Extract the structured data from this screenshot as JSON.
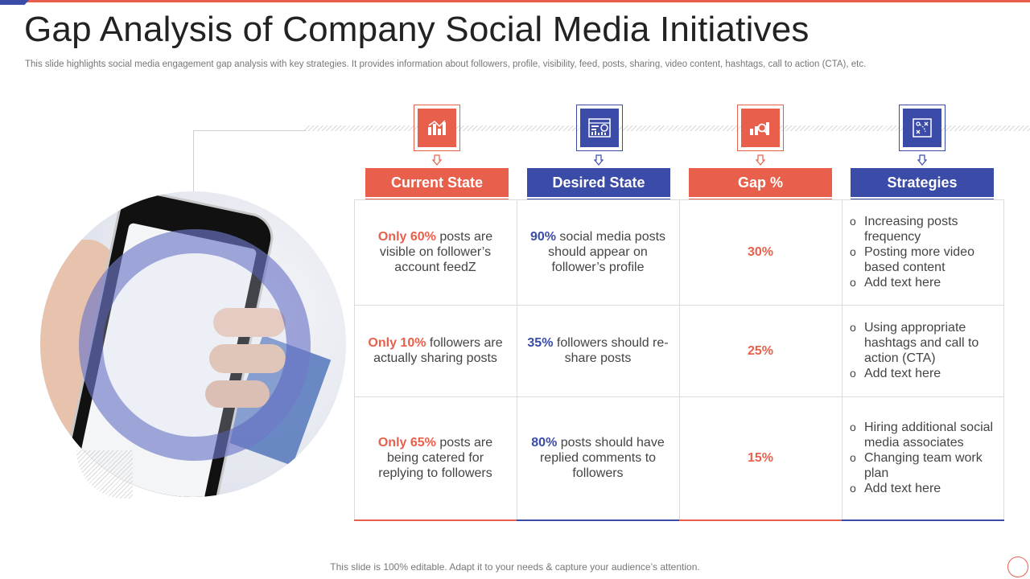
{
  "slide": {
    "title": "Gap Analysis of Company Social Media Initiatives",
    "subtitle": "This slide highlights social media engagement gap analysis with key strategies. It provides information about followers, profile, visibility, feed, posts, sharing, video content, hashtags, call to action (CTA),  etc.",
    "footer": "This slide is 100% editable. Adapt it to your needs & capture your audience’s attention."
  },
  "colors": {
    "accent_red": "#e8604c",
    "accent_blue": "#3b4ba8"
  },
  "columns": [
    {
      "label": "Current State",
      "icon": "bar-chart-icon",
      "color": "red"
    },
    {
      "label": "Desired State",
      "icon": "dashboard-icon",
      "color": "blue"
    },
    {
      "label": "Gap %",
      "icon": "chart-magnifier-icon",
      "color": "red"
    },
    {
      "label": "Strategies",
      "icon": "strategy-board-icon",
      "color": "blue"
    }
  ],
  "rows": [
    {
      "current": {
        "highlight": "Only 60%",
        "text": " posts are visible on follower’s account feedZ"
      },
      "desired": {
        "highlight": "90%",
        "text": " social media posts should appear on follower’s profile"
      },
      "gap": "30%",
      "strategies": [
        "Increasing posts frequency",
        "Posting more video based content",
        "Add text here"
      ]
    },
    {
      "current": {
        "highlight": "Only 10%",
        "text": " followers are actually sharing posts"
      },
      "desired": {
        "highlight": "35%",
        "text": " followers should re-share posts"
      },
      "gap": "25%",
      "strategies": [
        "Using appropriate hashtags and call to action (CTA)",
        "Add text here"
      ]
    },
    {
      "current": {
        "highlight": "Only 65%",
        "text": " posts are being catered for replying to followers"
      },
      "desired": {
        "highlight": "80%",
        "text": " posts should have replied comments to followers"
      },
      "gap": "15%",
      "strategies": [
        "Hiring additional social media associates",
        "Changing team work plan",
        "Add text here"
      ]
    }
  ]
}
